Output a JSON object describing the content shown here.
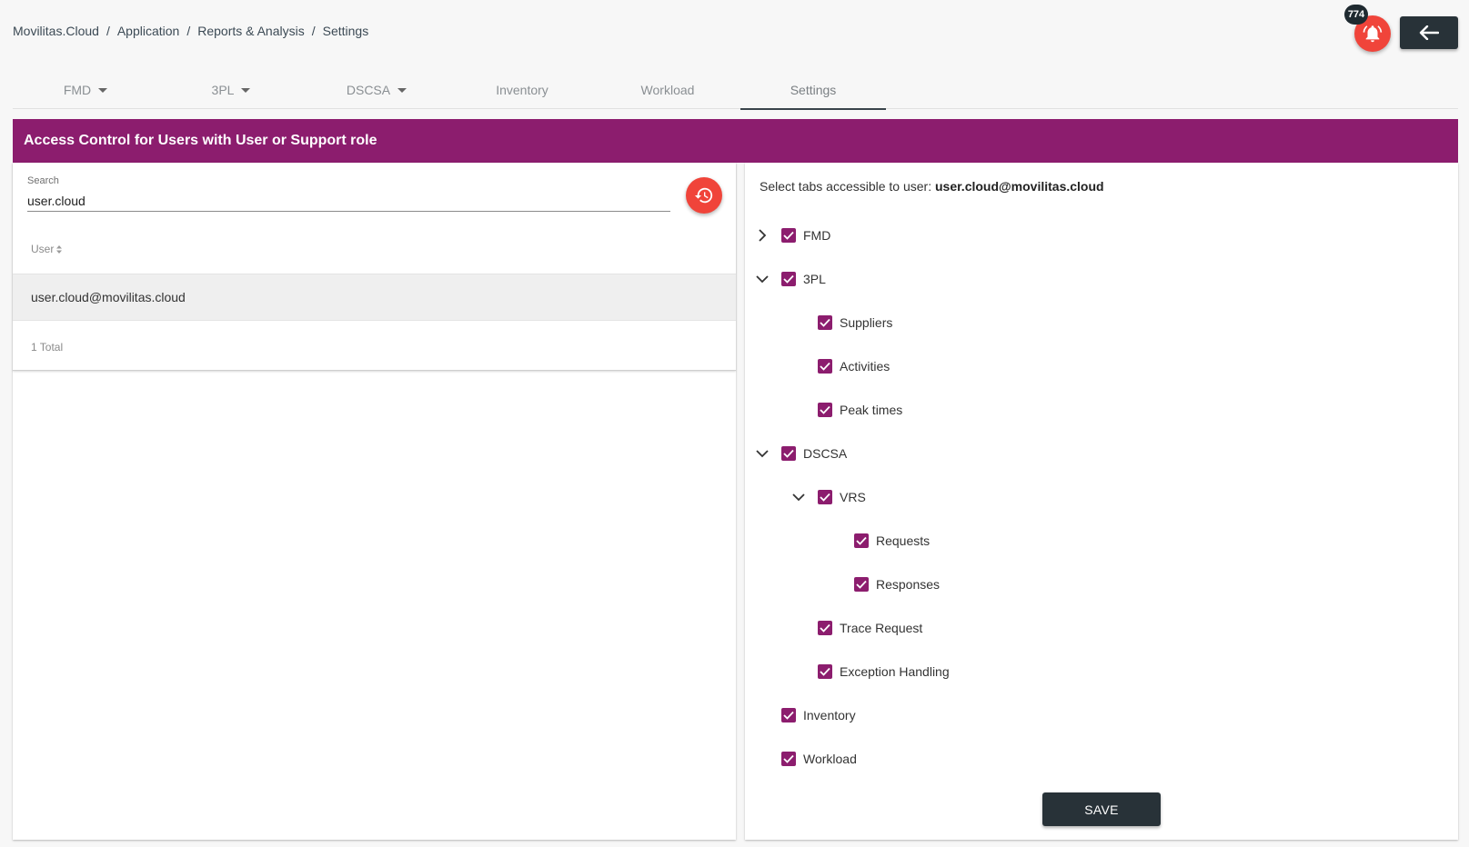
{
  "breadcrumb": [
    "Movilitas.Cloud",
    "Application",
    "Reports & Analysis",
    "Settings"
  ],
  "notifications": {
    "count": "774",
    "icon": "bell-ring-icon"
  },
  "back_icon": "arrow-left-icon",
  "tabs": [
    {
      "label": "FMD",
      "dropdown": true
    },
    {
      "label": "3PL",
      "dropdown": true
    },
    {
      "label": "DSCSA",
      "dropdown": true
    },
    {
      "label": "Inventory",
      "dropdown": false
    },
    {
      "label": "Workload",
      "dropdown": false
    },
    {
      "label": "Settings",
      "dropdown": false,
      "active": true
    }
  ],
  "panel_title": "Access Control for Users with User or Support role",
  "search": {
    "label": "Search",
    "value": "user.cloud"
  },
  "table": {
    "column": "User",
    "rows": [
      "user.cloud@movilitas.cloud"
    ],
    "total": "1 Total"
  },
  "permissions": {
    "prompt": "Select tabs accessible to user:",
    "user": "user.cloud@movilitas.cloud",
    "items": [
      {
        "label": "FMD",
        "level": 0,
        "expander": "collapsed",
        "checked": true
      },
      {
        "label": "3PL",
        "level": 0,
        "expander": "expanded",
        "checked": true
      },
      {
        "label": "Suppliers",
        "level": 1,
        "expander": "none",
        "checked": true
      },
      {
        "label": "Activities",
        "level": 1,
        "expander": "none",
        "checked": true
      },
      {
        "label": "Peak times",
        "level": 1,
        "expander": "none",
        "checked": true
      },
      {
        "label": "DSCSA",
        "level": 0,
        "expander": "expanded",
        "checked": true
      },
      {
        "label": "VRS",
        "level": 1,
        "expander": "expanded",
        "checked": true
      },
      {
        "label": "Requests",
        "level": 2,
        "expander": "none",
        "checked": true
      },
      {
        "label": "Responses",
        "level": 2,
        "expander": "none",
        "checked": true
      },
      {
        "label": "Trace Request",
        "level": 1,
        "expander": "none",
        "checked": true
      },
      {
        "label": "Exception Handling",
        "level": 1,
        "expander": "none",
        "checked": true
      },
      {
        "label": "Inventory",
        "level": 0,
        "expander": "none",
        "checked": true
      },
      {
        "label": "Workload",
        "level": 0,
        "expander": "none",
        "checked": true
      }
    ]
  },
  "save_label": "SAVE",
  "colors": {
    "accent": "#8c1d6e",
    "danger": "#f0443a",
    "dark": "#283238"
  }
}
